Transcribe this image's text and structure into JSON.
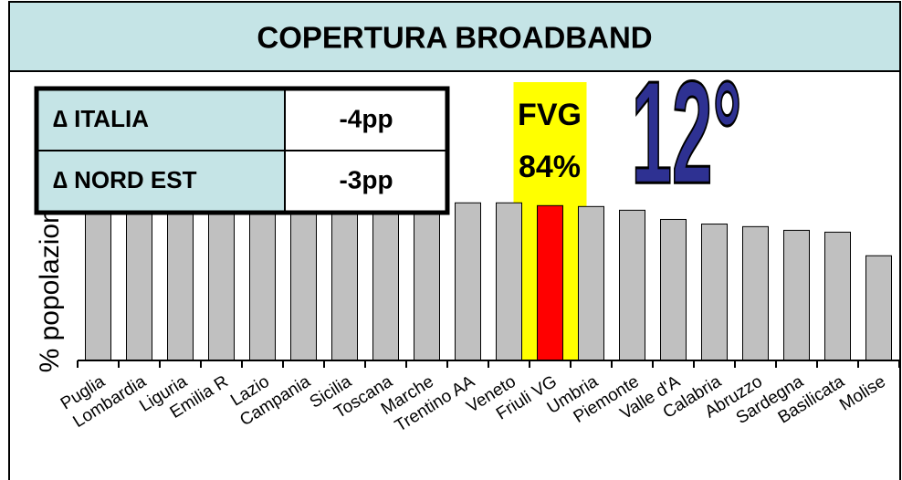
{
  "chart_data": {
    "type": "bar",
    "title": "COPERTURA BROADBAND",
    "y_label": "% popolazione",
    "categories": [
      "Puglia",
      "Lombardia",
      "Liguria",
      "Emilia R",
      "Lazio",
      "Campania",
      "Sicilia",
      "Toscana",
      "Marche",
      "Trentino AA",
      "Veneto",
      "Friuli VG",
      "Umbria",
      "Piemonte",
      "Valle d'A",
      "Calabria",
      "Abruzzo",
      "Sardegna",
      "Basilicata",
      "Molise"
    ],
    "values": [
      92,
      91,
      90,
      89,
      89,
      88,
      87,
      87,
      86,
      85.5,
      85.5,
      84,
      83.5,
      81.5,
      76.5,
      74,
      72.6,
      70.6,
      69.6,
      56.8
    ],
    "colors": [
      "#c0c0c0",
      "#c0c0c0",
      "#c0c0c0",
      "#c0c0c0",
      "#c0c0c0",
      "#c0c0c0",
      "#c0c0c0",
      "#c0c0c0",
      "#c0c0c0",
      "#c0c0c0",
      "#c0c0c0",
      "#ff0000",
      "#c0c0c0",
      "#c0c0c0",
      "#c0c0c0",
      "#c0c0c0",
      "#c0c0c0",
      "#c0c0c0",
      "#c0c0c0",
      "#c0c0c0"
    ],
    "highlight_band_color": "#ffff00",
    "ylim": [
      0,
      100
    ],
    "annotations": {
      "region": "FVG",
      "share": "84%",
      "rank": "12°"
    },
    "table": {
      "rows": [
        [
          "∆ ITALIA",
          "-4pp"
        ],
        [
          "∆ NORD EST",
          "-3pp"
        ]
      ]
    }
  }
}
